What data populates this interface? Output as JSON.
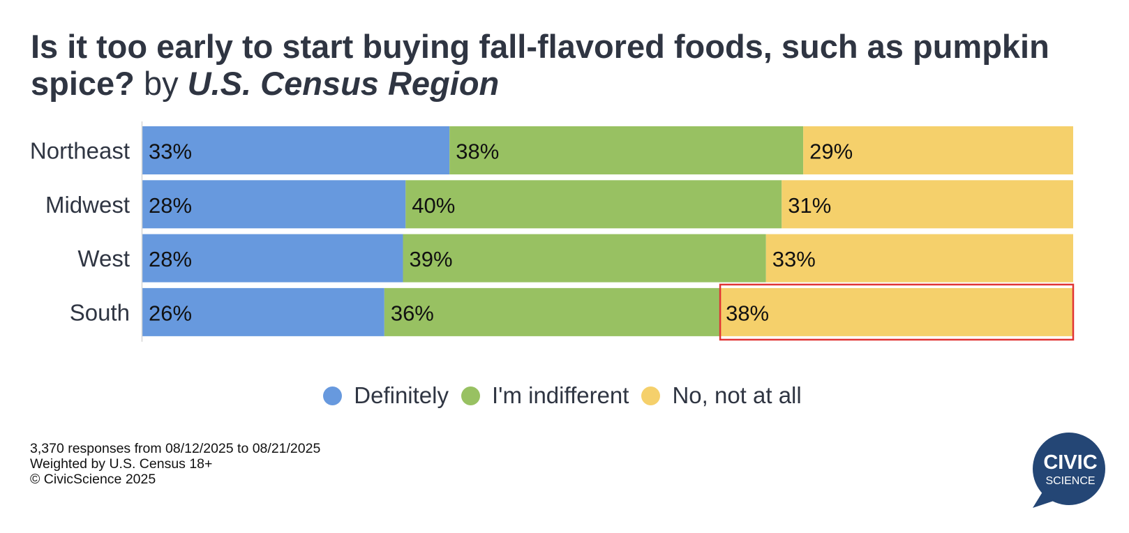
{
  "title": {
    "main": "Is it too early to start buying fall-flavored foods, such as pumpkin spice?",
    "by": "by",
    "region": "U.S. Census Region"
  },
  "chart_data": {
    "type": "bar",
    "orientation": "horizontal",
    "stacked": true,
    "title": "Is it too early to start buying fall-flavored foods, such as pumpkin spice? by U.S. Census Region",
    "categories": [
      "Northeast",
      "Midwest",
      "West",
      "South"
    ],
    "series": [
      {
        "name": "Definitely",
        "color": "#6799de",
        "values": [
          33,
          28,
          28,
          26
        ],
        "labels": [
          "33%",
          "28%",
          "28%",
          "26%"
        ]
      },
      {
        "name": "I'm indifferent",
        "color": "#98c162",
        "values": [
          38,
          40,
          39,
          36
        ],
        "labels": [
          "38%",
          "40%",
          "39%",
          "36%"
        ]
      },
      {
        "name": "No, not at all",
        "color": "#f5d06b",
        "values": [
          29,
          31,
          33,
          38
        ],
        "labels": [
          "29%",
          "31%",
          "33%",
          "38%"
        ]
      }
    ],
    "xlim": [
      0,
      100
    ],
    "grid": false,
    "legend_position": "bottom",
    "highlight": {
      "category": "South",
      "series": "No, not at all",
      "color": "#e03434"
    }
  },
  "footnotes": [
    "3,370 responses from 08/12/2025 to 08/21/2025",
    "Weighted by U.S. Census 18+",
    "© CivicScience 2025"
  ],
  "logo": {
    "line1": "CIVIC",
    "line2": "SCIENCE",
    "color": "#244675"
  }
}
